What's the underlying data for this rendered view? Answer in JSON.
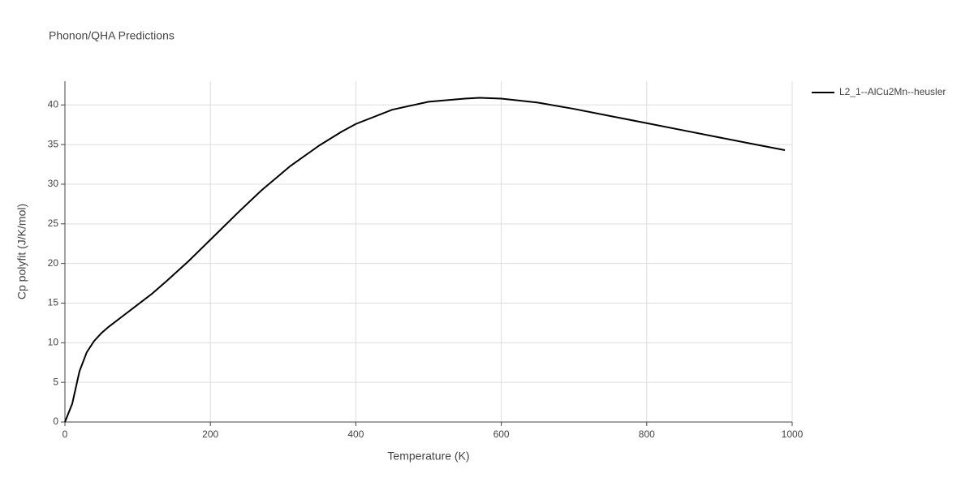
{
  "chart_data": {
    "type": "line",
    "title": "Phonon/QHA Predictions",
    "x_label": "Temperature (K)",
    "y_label": "Cp polyfit (J/K/mol)",
    "x": [
      0,
      10,
      20,
      30,
      40,
      50,
      60,
      80,
      100,
      120,
      140,
      170,
      200,
      240,
      270,
      310,
      350,
      380,
      400,
      450,
      500,
      550,
      570,
      600,
      650,
      700,
      750,
      800,
      850,
      900,
      950,
      990
    ],
    "series": [
      {
        "name": "L2_1--AlCu2Mn--heusler",
        "color": "#000000",
        "values": [
          0,
          2.3,
          6.4,
          8.8,
          10.2,
          11.2,
          12,
          13.4,
          14.8,
          16.2,
          17.8,
          20.3,
          23,
          26.6,
          29.2,
          32.3,
          34.9,
          36.6,
          37.6,
          39.4,
          40.4,
          40.8,
          40.9,
          40.8,
          40.3,
          39.5,
          38.6,
          37.7,
          36.8,
          35.9,
          35,
          34.3
        ]
      }
    ],
    "xlim": [
      0,
      1000
    ],
    "xticks": [
      0,
      200,
      400,
      600,
      800,
      1000
    ],
    "ylim": [
      0,
      43
    ],
    "yticks": [
      0,
      5,
      10,
      15,
      20,
      25,
      30,
      35,
      40
    ],
    "grid": true,
    "legend": "right"
  }
}
